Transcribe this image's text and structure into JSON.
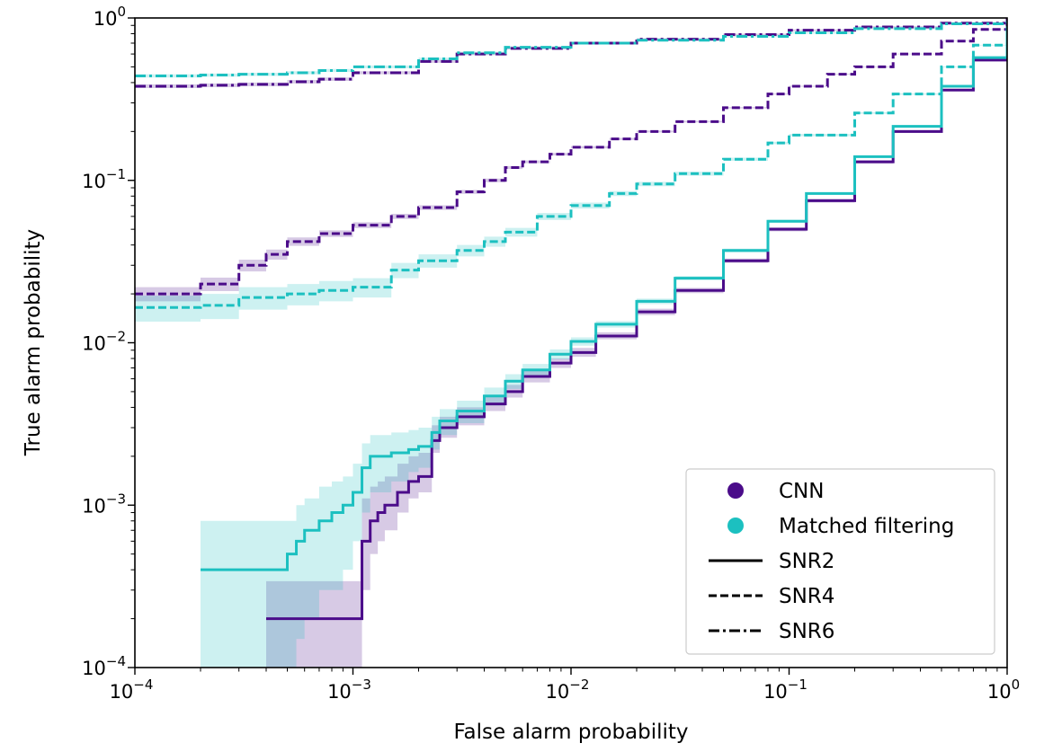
{
  "chart_data": {
    "type": "line",
    "title": "",
    "xlabel": "False alarm probability",
    "ylabel": "True alarm probability",
    "xscale": "log",
    "yscale": "log",
    "xlim": [
      0.0001,
      1
    ],
    "ylim": [
      0.0001,
      1
    ],
    "grid": false,
    "legend_position": "lower-right",
    "x_ticks": [
      {
        "value": 0.0001,
        "base": "10",
        "exp": "−4"
      },
      {
        "value": 0.001,
        "base": "10",
        "exp": "−3"
      },
      {
        "value": 0.01,
        "base": "10",
        "exp": "−2"
      },
      {
        "value": 0.1,
        "base": "10",
        "exp": "−1"
      },
      {
        "value": 1,
        "base": "10",
        "exp": "0"
      }
    ],
    "y_ticks": [
      {
        "value": 0.0001,
        "base": "10",
        "exp": "−4"
      },
      {
        "value": 0.001,
        "base": "10",
        "exp": "−3"
      },
      {
        "value": 0.01,
        "base": "10",
        "exp": "−2"
      },
      {
        "value": 0.1,
        "base": "10",
        "exp": "−1"
      },
      {
        "value": 1,
        "base": "10",
        "exp": "0"
      }
    ],
    "legend": [
      {
        "label": "CNN",
        "kind": "marker",
        "color": "#4b0c8a"
      },
      {
        "label": "Matched filtering",
        "kind": "marker",
        "color": "#1cc0c0"
      },
      {
        "label": "SNR2",
        "kind": "line",
        "dash": "solid"
      },
      {
        "label": "SNR4",
        "kind": "line",
        "dash": "dashed"
      },
      {
        "label": "SNR6",
        "kind": "line",
        "dash": "dashdot"
      }
    ],
    "series": [
      {
        "method": "CNN",
        "snr": "SNR2",
        "color": "#4b0c8a",
        "dash": "solid",
        "step": true,
        "x": [
          0.0004,
          0.0011,
          0.0012,
          0.0013,
          0.0014,
          0.0016,
          0.0018,
          0.002,
          0.0023,
          0.0025,
          0.003,
          0.004,
          0.005,
          0.006,
          0.008,
          0.01,
          0.013,
          0.02,
          0.03,
          0.05,
          0.08,
          0.12,
          0.2,
          0.3,
          0.5,
          0.7,
          1
        ],
        "y": [
          0.0002,
          0.0006,
          0.0008,
          0.0009,
          0.001,
          0.0012,
          0.0014,
          0.0015,
          0.0025,
          0.003,
          0.0035,
          0.0042,
          0.005,
          0.0062,
          0.0075,
          0.0087,
          0.011,
          0.0155,
          0.021,
          0.032,
          0.05,
          0.075,
          0.13,
          0.2,
          0.36,
          0.55,
          1
        ],
        "band_lower": [
          0.0001,
          0.0003,
          0.0005,
          0.0006,
          0.0007,
          0.0009,
          0.0011,
          0.0012,
          0.0021,
          0.0026,
          0.0031,
          0.0038,
          0.0046,
          0.0057,
          0.007,
          0.0082,
          0.0105,
          0.0148,
          0.0202,
          0.031,
          0.0485,
          0.073,
          0.127,
          0.196,
          0.355,
          0.545,
          1
        ],
        "band_upper": [
          0.00034,
          0.0011,
          0.0013,
          0.0014,
          0.0015,
          0.0018,
          0.002,
          0.0021,
          0.0031,
          0.0035,
          0.004,
          0.0047,
          0.0055,
          0.0068,
          0.008,
          0.0093,
          0.0116,
          0.0162,
          0.0218,
          0.033,
          0.0515,
          0.077,
          0.133,
          0.204,
          0.365,
          0.555,
          1
        ]
      },
      {
        "method": "Matched filtering",
        "snr": "SNR2",
        "color": "#1cc0c0",
        "dash": "solid",
        "step": true,
        "x": [
          0.0002,
          0.0005,
          0.00055,
          0.0006,
          0.0007,
          0.0008,
          0.0009,
          0.001,
          0.0011,
          0.0012,
          0.0015,
          0.0018,
          0.002,
          0.0023,
          0.0025,
          0.003,
          0.004,
          0.005,
          0.006,
          0.008,
          0.01,
          0.013,
          0.02,
          0.03,
          0.05,
          0.08,
          0.12,
          0.2,
          0.3,
          0.5,
          0.7,
          1
        ],
        "y": [
          0.0004,
          0.0005,
          0.0006,
          0.0007,
          0.0008,
          0.0009,
          0.001,
          0.0012,
          0.0017,
          0.002,
          0.0021,
          0.0022,
          0.0023,
          0.0028,
          0.0033,
          0.0038,
          0.0047,
          0.0058,
          0.0068,
          0.0085,
          0.0102,
          0.013,
          0.018,
          0.025,
          0.037,
          0.056,
          0.083,
          0.14,
          0.215,
          0.38,
          0.57,
          1
        ],
        "band_lower": [
          0.0001,
          0.0001,
          0.00015,
          0.0002,
          0.0003,
          0.0003,
          0.0004,
          0.0006,
          0.0009,
          0.0012,
          0.0014,
          0.0016,
          0.0017,
          0.0022,
          0.0027,
          0.0032,
          0.0041,
          0.0052,
          0.0062,
          0.0079,
          0.0096,
          0.0124,
          0.0173,
          0.0243,
          0.036,
          0.0548,
          0.0815,
          0.1385,
          0.2135,
          0.378,
          0.568,
          1
        ],
        "band_upper": [
          0.0008,
          0.0008,
          0.001,
          0.0011,
          0.0013,
          0.0014,
          0.0015,
          0.0018,
          0.0024,
          0.0027,
          0.0028,
          0.0029,
          0.003,
          0.0035,
          0.0039,
          0.0044,
          0.0053,
          0.0064,
          0.0074,
          0.0091,
          0.0108,
          0.0136,
          0.0187,
          0.0257,
          0.038,
          0.0572,
          0.0845,
          0.1415,
          0.2165,
          0.382,
          0.572,
          1
        ]
      },
      {
        "method": "CNN",
        "snr": "SNR4",
        "color": "#4b0c8a",
        "dash": "dashed",
        "step": true,
        "x": [
          0.0001,
          0.0002,
          0.0003,
          0.0004,
          0.0005,
          0.0007,
          0.001,
          0.0015,
          0.002,
          0.003,
          0.004,
          0.005,
          0.006,
          0.008,
          0.01,
          0.015,
          0.02,
          0.03,
          0.05,
          0.08,
          0.1,
          0.15,
          0.2,
          0.3,
          0.5,
          0.7,
          1
        ],
        "y": [
          0.02,
          0.023,
          0.03,
          0.035,
          0.042,
          0.047,
          0.053,
          0.06,
          0.068,
          0.085,
          0.1,
          0.12,
          0.13,
          0.145,
          0.16,
          0.18,
          0.2,
          0.23,
          0.28,
          0.34,
          0.38,
          0.45,
          0.5,
          0.6,
          0.72,
          0.85,
          1
        ],
        "band_lower": [
          0.018,
          0.0208,
          0.0275,
          0.0325,
          0.0395,
          0.0448,
          0.0508,
          0.0578,
          0.0658,
          0.0826,
          0.0975,
          0.1175,
          0.1275,
          0.1425,
          0.1575,
          0.1775,
          0.1975,
          0.2275,
          0.2775,
          0.3375,
          0.3775,
          0.4475,
          0.4975,
          0.5975,
          0.7175,
          0.8475,
          1
        ],
        "band_upper": [
          0.022,
          0.0252,
          0.0325,
          0.0375,
          0.0445,
          0.0492,
          0.0552,
          0.0622,
          0.0702,
          0.0874,
          0.1025,
          0.1225,
          0.1325,
          0.1475,
          0.1625,
          0.1825,
          0.2025,
          0.2325,
          0.2825,
          0.3425,
          0.3825,
          0.4525,
          0.5025,
          0.6025,
          0.7225,
          0.8525,
          1
        ]
      },
      {
        "method": "Matched filtering",
        "snr": "SNR4",
        "color": "#1cc0c0",
        "dash": "dashed",
        "step": true,
        "x": [
          0.0001,
          0.0002,
          0.0003,
          0.0005,
          0.0007,
          0.001,
          0.0015,
          0.002,
          0.003,
          0.004,
          0.005,
          0.007,
          0.01,
          0.015,
          0.02,
          0.03,
          0.05,
          0.08,
          0.1,
          0.2,
          0.3,
          0.5,
          0.7,
          1
        ],
        "y": [
          0.0165,
          0.017,
          0.019,
          0.02,
          0.021,
          0.022,
          0.028,
          0.032,
          0.037,
          0.042,
          0.048,
          0.06,
          0.07,
          0.083,
          0.095,
          0.11,
          0.135,
          0.17,
          0.19,
          0.26,
          0.34,
          0.5,
          0.68,
          1
        ],
        "band_lower": [
          0.0135,
          0.014,
          0.016,
          0.017,
          0.018,
          0.019,
          0.025,
          0.029,
          0.034,
          0.039,
          0.045,
          0.057,
          0.067,
          0.08,
          0.092,
          0.107,
          0.132,
          0.167,
          0.187,
          0.257,
          0.337,
          0.497,
          0.677,
          1
        ],
        "band_upper": [
          0.0195,
          0.02,
          0.022,
          0.023,
          0.024,
          0.025,
          0.031,
          0.035,
          0.04,
          0.045,
          0.051,
          0.063,
          0.073,
          0.086,
          0.098,
          0.113,
          0.138,
          0.173,
          0.193,
          0.263,
          0.343,
          0.503,
          0.683,
          1
        ]
      },
      {
        "method": "CNN",
        "snr": "SNR6",
        "color": "#4b0c8a",
        "dash": "dashdot",
        "step": true,
        "x": [
          0.0001,
          0.0002,
          0.0003,
          0.0005,
          0.0007,
          0.001,
          0.002,
          0.003,
          0.005,
          0.01,
          0.02,
          0.05,
          0.1,
          0.2,
          0.5,
          1
        ],
        "y": [
          0.38,
          0.385,
          0.39,
          0.405,
          0.42,
          0.46,
          0.54,
          0.6,
          0.65,
          0.7,
          0.74,
          0.79,
          0.84,
          0.88,
          0.93,
          1
        ],
        "band_lower": [
          0.37,
          0.375,
          0.38,
          0.395,
          0.41,
          0.45,
          0.53,
          0.59,
          0.64,
          0.69,
          0.73,
          0.78,
          0.83,
          0.87,
          0.92,
          1
        ],
        "band_upper": [
          0.39,
          0.395,
          0.4,
          0.415,
          0.43,
          0.47,
          0.55,
          0.61,
          0.66,
          0.71,
          0.75,
          0.8,
          0.85,
          0.89,
          0.94,
          1
        ]
      },
      {
        "method": "Matched filtering",
        "snr": "SNR6",
        "color": "#1cc0c0",
        "dash": "dashdot",
        "step": true,
        "x": [
          0.0001,
          0.0002,
          0.0003,
          0.0005,
          0.0007,
          0.001,
          0.002,
          0.003,
          0.005,
          0.01,
          0.02,
          0.05,
          0.1,
          0.2,
          0.5,
          1
        ],
        "y": [
          0.44,
          0.445,
          0.45,
          0.46,
          0.475,
          0.5,
          0.56,
          0.61,
          0.66,
          0.7,
          0.73,
          0.77,
          0.81,
          0.86,
          0.92,
          1
        ],
        "band_lower": [
          0.43,
          0.435,
          0.44,
          0.45,
          0.465,
          0.49,
          0.55,
          0.6,
          0.65,
          0.69,
          0.72,
          0.76,
          0.8,
          0.85,
          0.91,
          1
        ],
        "band_upper": [
          0.45,
          0.455,
          0.46,
          0.47,
          0.485,
          0.51,
          0.57,
          0.62,
          0.67,
          0.71,
          0.74,
          0.78,
          0.82,
          0.87,
          0.93,
          1
        ]
      }
    ]
  }
}
